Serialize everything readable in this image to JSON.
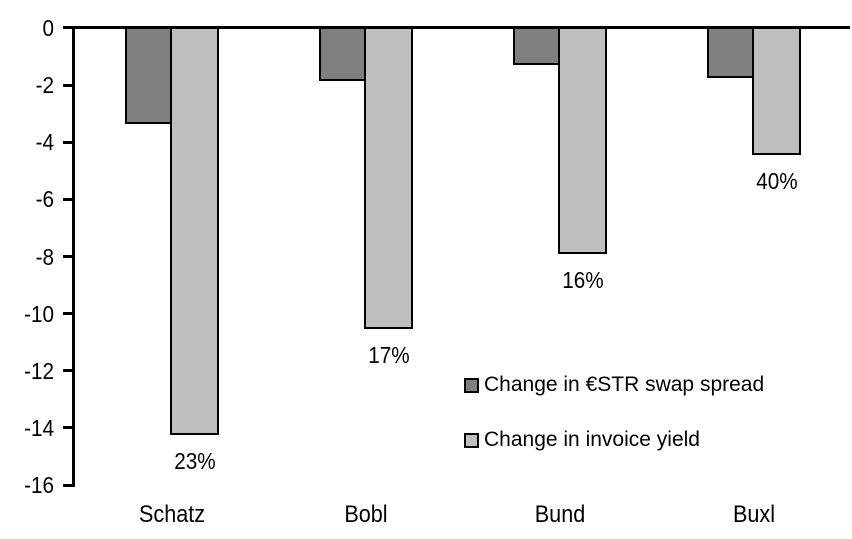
{
  "chart_data": {
    "type": "bar",
    "title": "",
    "xlabel": "",
    "ylabel": "",
    "categories": [
      "Schatz",
      "Bobl",
      "Bund",
      "Buxl"
    ],
    "series": [
      {
        "name": "Change in €STR swap spread",
        "key": "swap-spread",
        "color": "#7f7f7f",
        "values": [
          -3.3,
          -1.8,
          -1.25,
          -1.7
        ]
      },
      {
        "name": "Change in invoice yield",
        "key": "invoice-yield",
        "color": "#bfbfbf",
        "values": [
          -14.2,
          -10.5,
          -7.85,
          -4.4
        ],
        "bar_labels": [
          "23%",
          "17%",
          "16%",
          "40%"
        ]
      }
    ],
    "ylim": [
      -16,
      0
    ],
    "yticks": [
      0,
      -2,
      -4,
      -6,
      -8,
      -10,
      -12,
      -14,
      -16
    ],
    "grid": false,
    "legend_position": "inside-bottom-right",
    "axis_color": "#000000",
    "text_color": "#000000"
  }
}
